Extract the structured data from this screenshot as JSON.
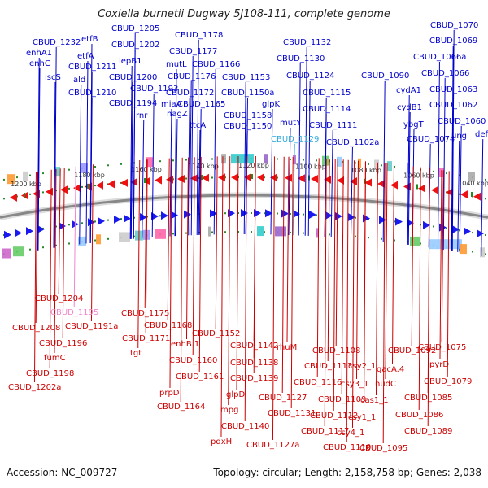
{
  "title": "Coxiella burnetii Dugway 5J108-111, complete genome",
  "footer": {
    "accession": "Accession: NC_009727",
    "info": "Topology: circular; Length: 2,158,758 bp; Genes: 2,038"
  },
  "colors": {
    "forward": "#0000cc",
    "reverse": "#cc0000",
    "highlight_blue": "#33aadd",
    "highlight_pink": "#ee88cc",
    "backbone": "#888888",
    "tick": "#228822"
  },
  "kbp_ticks": [
    "1200 kbp",
    "1180 kbp",
    "1160 kbp",
    "1140 kbp",
    "1120 kbp",
    "1100 kbp",
    "1080 kbp",
    "1060 kbp",
    "1040 kbp"
  ],
  "top_labels": [
    "CBUD_1232",
    "enhA1",
    "enhC",
    "iscS",
    "etfB",
    "etfA",
    "CBUD_1211",
    "ald",
    "CBUD_1210",
    "CBUD_1205",
    "CBUD_1202",
    "lepB1",
    "CBUD_1200",
    "CBUD_1193",
    "CBUD_1194",
    "rnr",
    "CBUD_1178",
    "CBUD_1177",
    "mutL",
    "CBUD_1176",
    "CBUD_1166",
    "CBUD_1172",
    "miaA",
    "nagZ",
    "CBUD_1165",
    "ttcA",
    "CBUD_1153",
    "CBUD_1150a",
    "CBUD_1158",
    "CBUD_1150",
    "CBUD_1132",
    "CBUD_1130",
    "glpK",
    "CBUD_1124",
    "CBUD_1115",
    "mutY",
    "CBUD_1114",
    "CBUD_1129",
    "CBUD_1111",
    "CBUD_1102a",
    "CBUD_1090",
    "CBUD_1070",
    "CBUD_1069",
    "CBUD_1066a",
    "CBUD_1066",
    "cydA1",
    "CBUD_1063",
    "cydB1",
    "CBUD_1062",
    "ybgT",
    "CBUD_1060",
    "CBUD_1074",
    "ung",
    "def"
  ],
  "bottom_labels": [
    "CBUD_1204",
    "CBUD_1195",
    "CBUD_1208",
    "CBUD_1191a",
    "CBUD_1196",
    "fumC",
    "CBUD_1198",
    "CBUD_1202a",
    "CBUD_1175",
    "CBUD_1168",
    "CBUD_1171",
    "tgt",
    "enhB.1",
    "CBUD_1160",
    "CBUD_1161",
    "prpD",
    "CBUD_1164",
    "CBUD_1152",
    "CBUD_1142",
    "CBUD_1138",
    "CBUD_1139",
    "glpD",
    "mpg",
    "CBUD_1140",
    "pdxH",
    "rhuM",
    "CBUD_1116",
    "CBUD_1127",
    "CBUD_1131",
    "CBUD_1127a",
    "CBUD_1108",
    "CBUD_1113",
    "CBUD_1109",
    "CBUD_1112",
    "CBUD_1117",
    "CBUD_1110",
    "csy2_1",
    "csy3_1",
    "csy1_1",
    "csy4_1",
    "CBUD_1092",
    "gacA.4",
    "nudC",
    "cas1_1",
    "CBUD_1095",
    "CBUD_1075",
    "pyrD",
    "CBUD_1079",
    "CBUD_1085",
    "CBUD_1086",
    "CBUD_1089"
  ]
}
